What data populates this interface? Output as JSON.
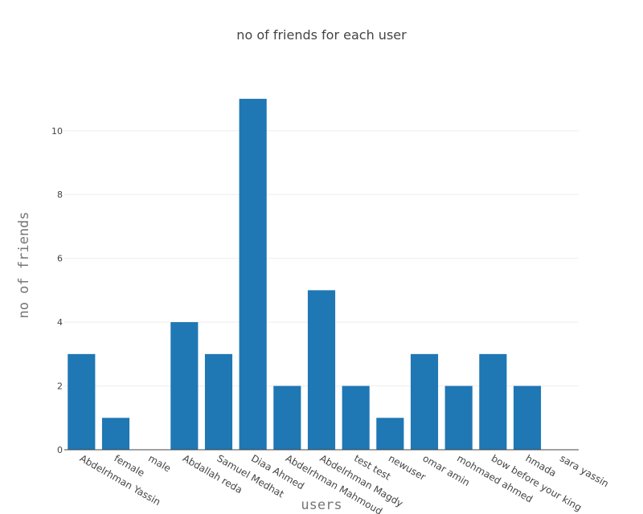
{
  "chart_data": {
    "type": "bar",
    "title": "no of friends for each user",
    "xlabel": "users",
    "ylabel": "no of friends",
    "categories": [
      "Abdelrhman Yassin",
      "female",
      "male",
      "Abdallah reda",
      "Samuel Medhat",
      "Diaa Ahmed",
      "Abdelrhman Mahmoud",
      "Abdelrhman Magdy",
      "test test",
      "newuser",
      "omar amin",
      "mohmaed ahmed",
      "bow before your king",
      "hmada",
      "sara yassin"
    ],
    "values": [
      3,
      1,
      0,
      4,
      3,
      11,
      2,
      5,
      2,
      1,
      3,
      2,
      3,
      2,
      0
    ],
    "ylim": [
      0,
      11.58
    ],
    "yticks": [
      0,
      2,
      4,
      6,
      8,
      10
    ],
    "grid": true,
    "bar_color": "#1f77b4"
  }
}
